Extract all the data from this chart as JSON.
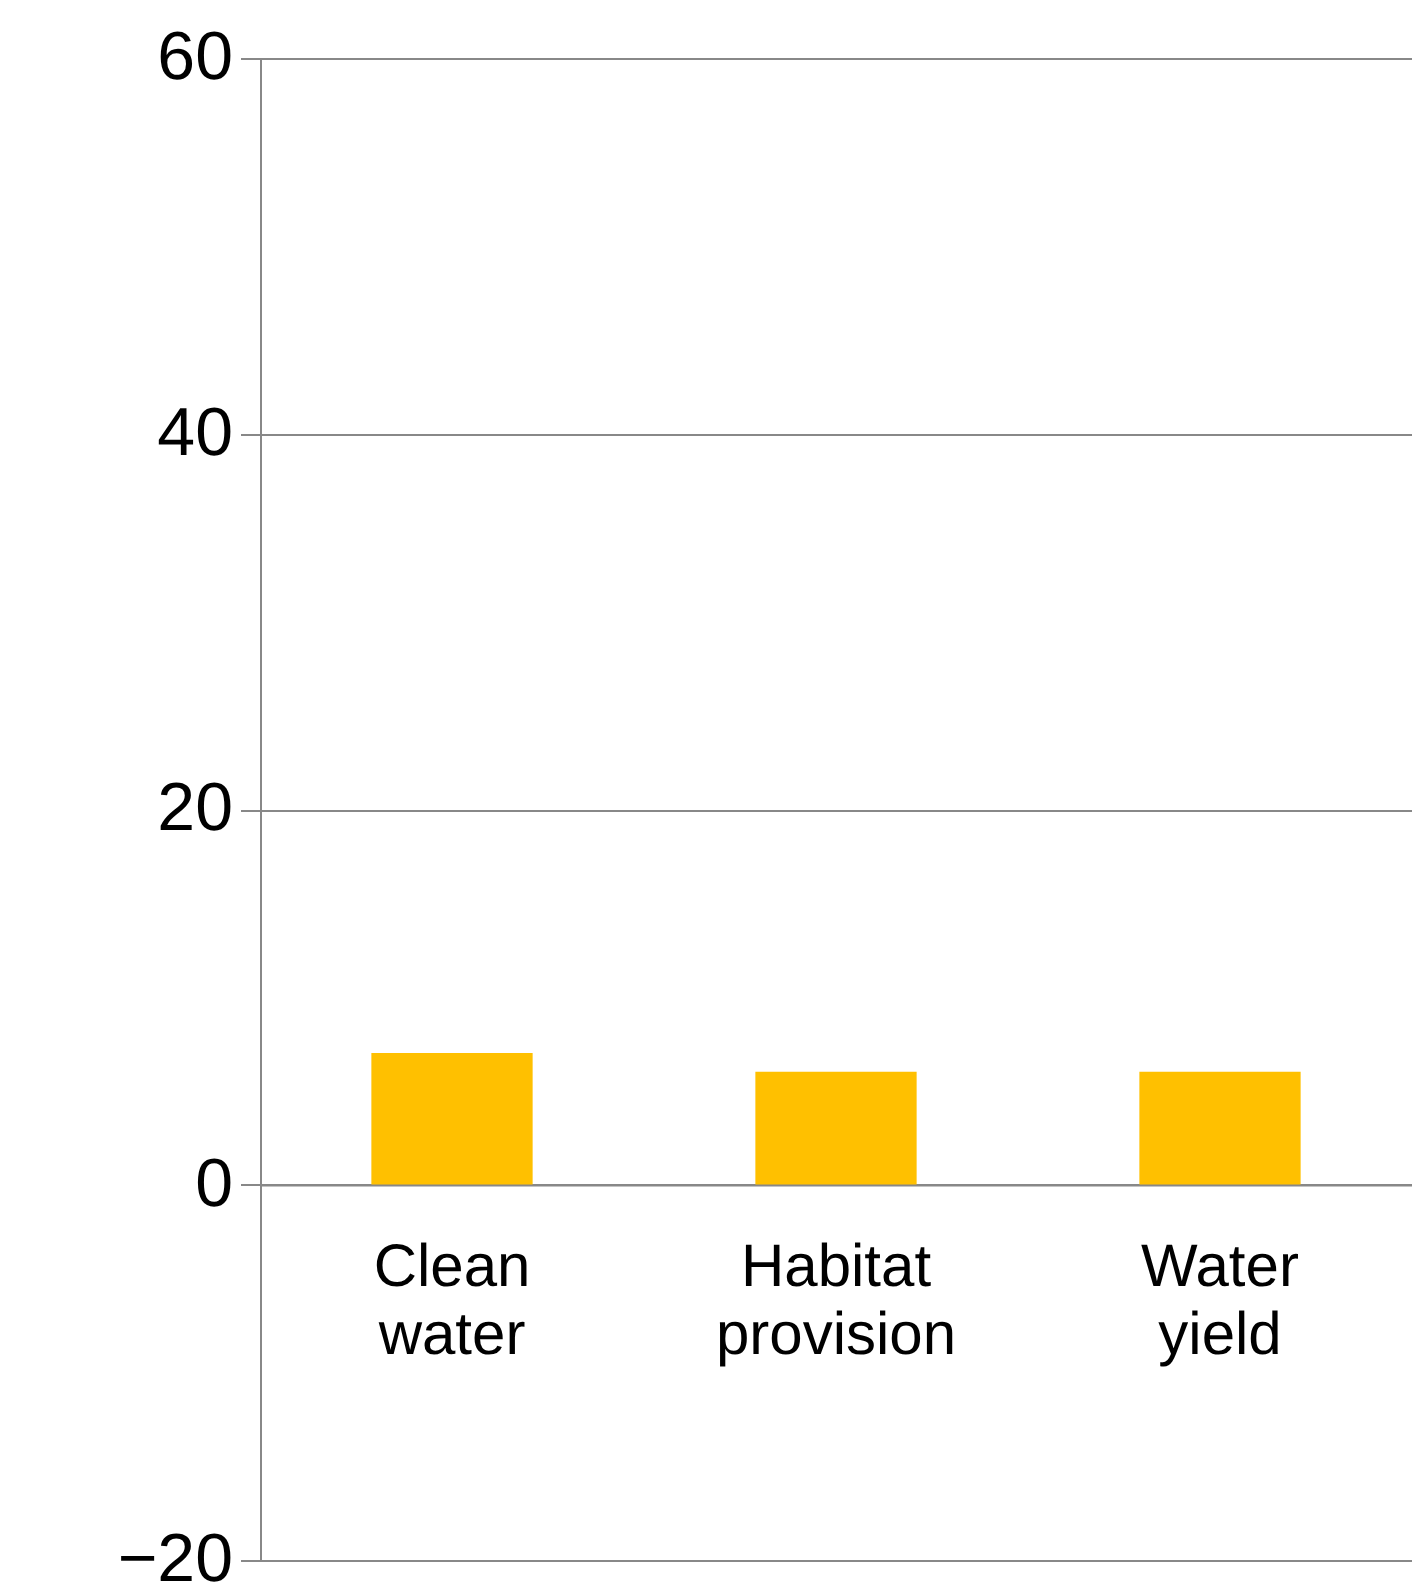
{
  "chart_data": {
    "type": "bar",
    "categories": [
      "Clean water",
      "Habitat provision",
      "Water yield"
    ],
    "values": [
      7,
      6,
      6
    ],
    "color": "#ffc000",
    "ylim": [
      -20,
      60
    ],
    "yticks": [
      -20,
      0,
      20,
      40,
      60
    ],
    "grid": "y"
  }
}
